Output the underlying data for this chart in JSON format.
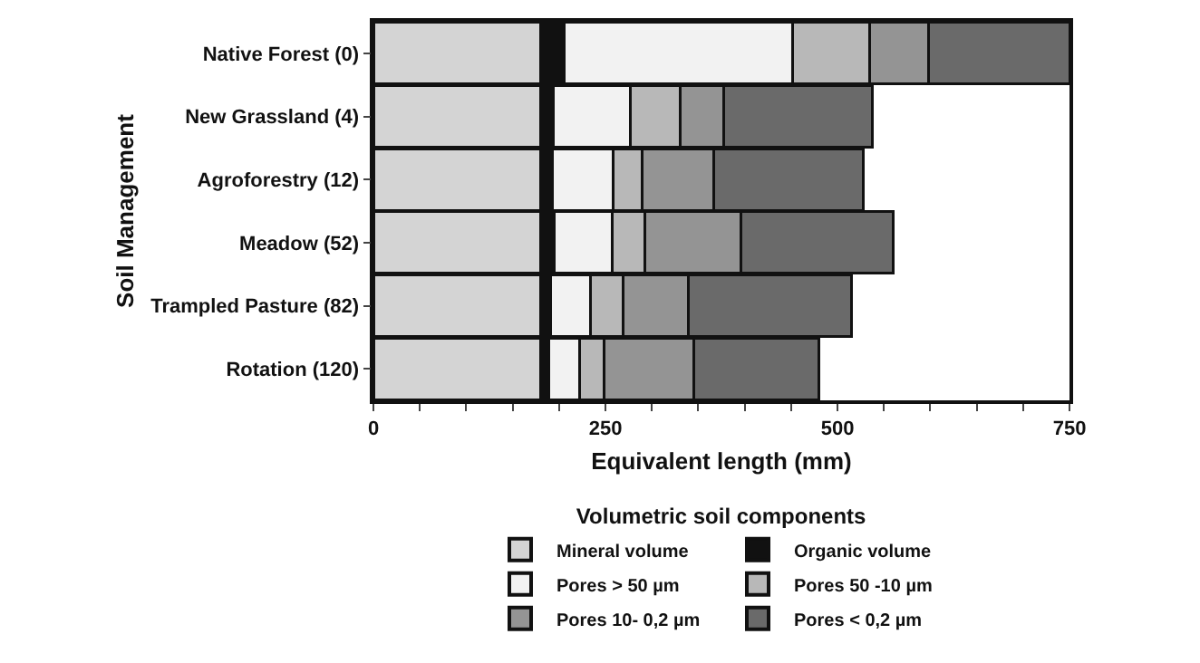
{
  "chart_data": {
    "type": "bar",
    "orientation": "horizontal",
    "stacked": true,
    "categories": [
      "Native Forest (0)",
      "New Grassland (4)",
      "Agroforestry (12)",
      "Meadow (52)",
      "Trampled Pasture (82)",
      "Rotation (120)"
    ],
    "series": [
      {
        "name": "Mineral volume",
        "color": "#d4d4d4",
        "values": [
          180,
          180,
          180,
          180,
          180,
          180
        ]
      },
      {
        "name": "Organic volume",
        "color": "#111111",
        "values": [
          26,
          14,
          13,
          15,
          11,
          9
        ]
      },
      {
        "name": "Pores > 50 µm",
        "color": "#f2f2f2",
        "values": [
          246,
          83,
          65,
          62,
          43,
          33
        ]
      },
      {
        "name": "Pores 50 -10 µm",
        "color": "#b8b8b8",
        "values": [
          83,
          54,
          32,
          35,
          35,
          27
        ]
      },
      {
        "name": "Pores 10- 0,2 µm",
        "color": "#949494",
        "values": [
          63,
          46,
          77,
          104,
          70,
          96
        ]
      },
      {
        "name": "Pores < 0,2 µm",
        "color": "#6a6a6a",
        "values": [
          152,
          161,
          161,
          164,
          176,
          135
        ]
      }
    ],
    "xlabel": "Equivalent length (mm)",
    "ylabel": "Soil Management",
    "legend_title": "Volumetric soil components",
    "xlim": [
      0,
      750
    ],
    "xticks": [
      0,
      {
        "value": 50,
        "label": null
      },
      {
        "value": 100,
        "label": null
      },
      {
        "value": 150,
        "label": null
      },
      {
        "value": 200,
        "label": null
      },
      250,
      {
        "value": 300,
        "label": null
      },
      {
        "value": 350,
        "label": null
      },
      {
        "value": 400,
        "label": null
      },
      {
        "value": 450,
        "label": null
      },
      500,
      {
        "value": 550,
        "label": null
      },
      {
        "value": 600,
        "label": null
      },
      {
        "value": 650,
        "label": null
      },
      {
        "value": 700,
        "label": null
      },
      750
    ],
    "legend": "bottom"
  }
}
